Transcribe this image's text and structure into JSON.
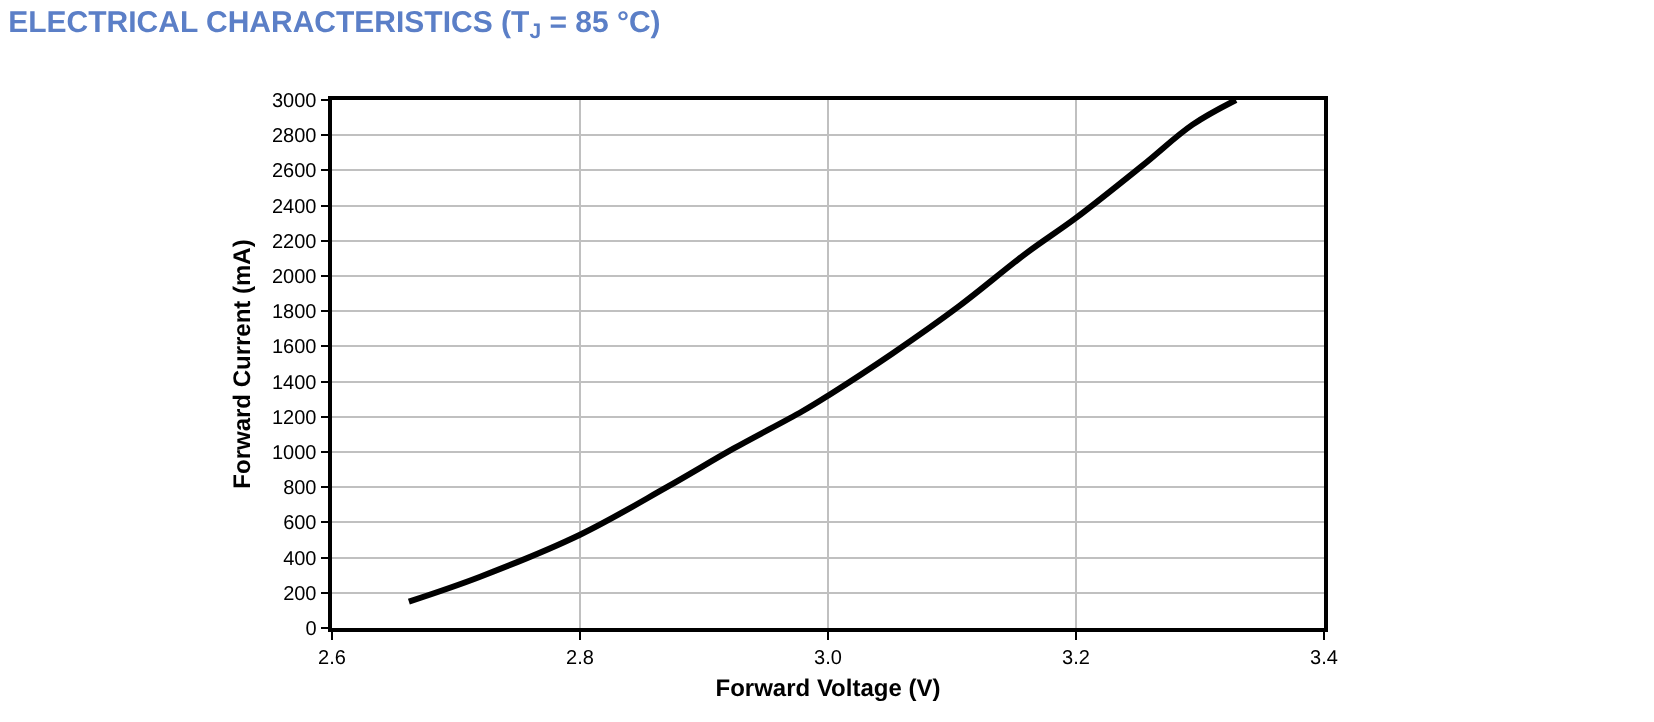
{
  "chart_data": {
    "type": "line",
    "title": "ELECTRICAL CHARACTERISTICS (T$_{J}$ = 85 °C)",
    "xlabel": "Forward Voltage (V)",
    "ylabel": "Forward Current (mA)",
    "x": [
      2.662,
      2.719,
      2.8,
      2.87,
      2.924,
      2.979,
      3.0,
      3.052,
      3.106,
      3.16,
      3.2,
      3.254,
      3.294,
      3.329
    ],
    "series": [
      {
        "color": "#000000",
        "values": [
          150,
          290,
          530,
          800,
          1020,
          1230,
          1320,
          1560,
          1830,
          2130,
          2330,
          2630,
          2860,
          3000
        ]
      }
    ],
    "xlim": [
      2.6,
      3.4
    ],
    "xticks": [
      {
        "value": 2.6,
        "label": "2.6"
      },
      {
        "value": 2.8,
        "label": "2.8"
      },
      {
        "value": 3.0,
        "label": "3.0"
      },
      {
        "value": 3.2,
        "label": "3.2"
      },
      {
        "value": 3.4,
        "label": "3.4"
      }
    ],
    "ylim": [
      0,
      3000
    ],
    "yticks": [
      0,
      200,
      400,
      600,
      800,
      1000,
      1200,
      1400,
      1600,
      1800,
      2000,
      2200,
      2400,
      2600,
      2800,
      3000
    ],
    "grid": true,
    "marker": "none",
    "line_style": "solid"
  }
}
